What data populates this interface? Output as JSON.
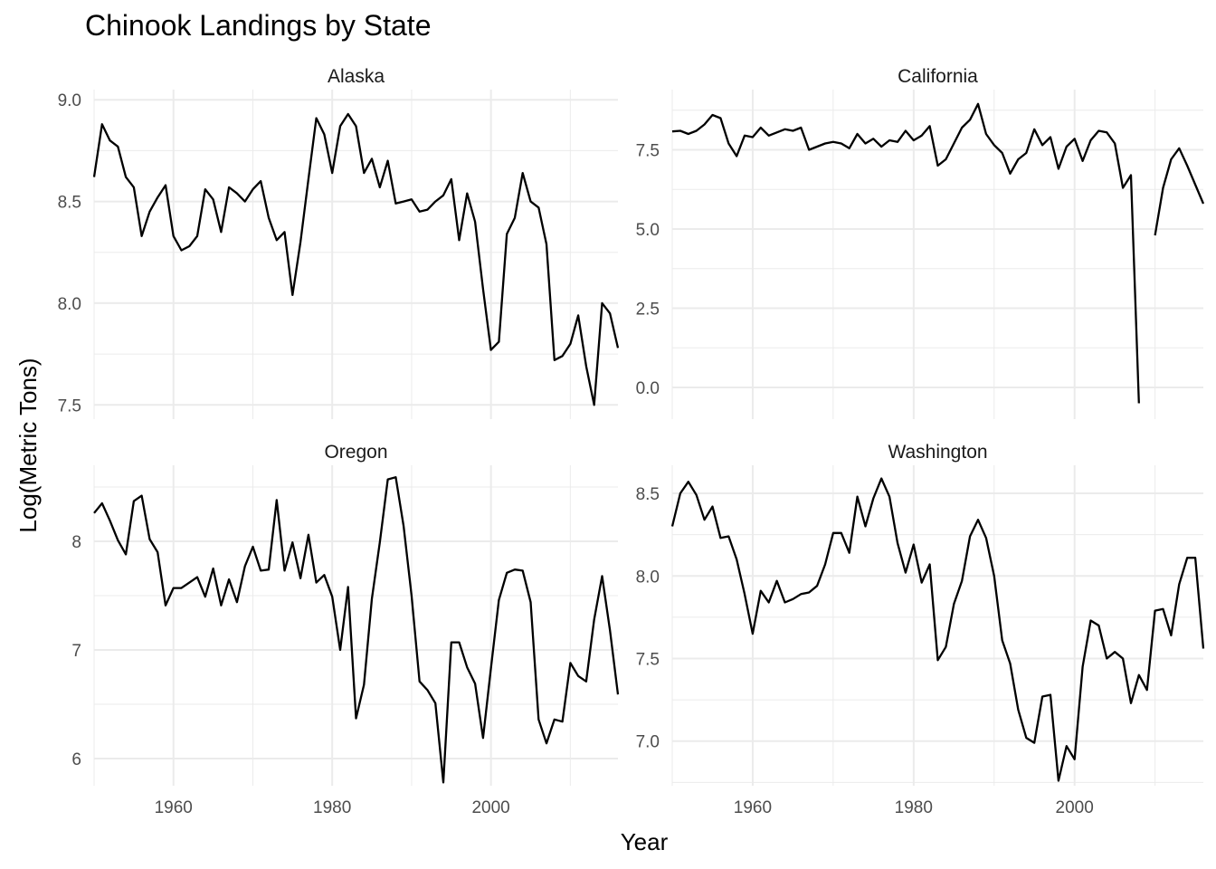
{
  "chart_data": {
    "type": "line",
    "title": "Chinook Landings by State",
    "xlabel": "Year",
    "ylabel": "Log(Metric Tons)",
    "grid": true,
    "x_start": 1950,
    "panels": [
      {
        "name": "Alaska",
        "xlim": [
          1950,
          2016
        ],
        "ylim": [
          7.43,
          9.05
        ],
        "x_ticks": [
          1960,
          1980,
          2000
        ],
        "y_ticks": [
          7.5,
          8.0,
          8.5,
          9.0
        ],
        "y_tick_labels": [
          "7.5",
          "8.0",
          "8.5",
          "9.0"
        ],
        "show_x_labels": false,
        "values": [
          8.62,
          8.88,
          8.8,
          8.77,
          8.62,
          8.57,
          8.33,
          8.45,
          8.52,
          8.58,
          8.33,
          8.26,
          8.28,
          8.33,
          8.56,
          8.51,
          8.35,
          8.57,
          8.54,
          8.5,
          8.56,
          8.6,
          8.42,
          8.31,
          8.35,
          8.04,
          8.3,
          8.61,
          8.91,
          8.83,
          8.64,
          8.87,
          8.93,
          8.87,
          8.64,
          8.71,
          8.57,
          8.7,
          8.49,
          8.5,
          8.51,
          8.45,
          8.46,
          8.5,
          8.53,
          8.61,
          8.31,
          8.54,
          8.4,
          8.07,
          7.77,
          7.81,
          8.34,
          8.42,
          8.64,
          8.5,
          8.47,
          8.29,
          7.72,
          7.74,
          7.8,
          7.94,
          7.69,
          7.5,
          8.0,
          7.95,
          7.78
        ]
      },
      {
        "name": "California",
        "xlim": [
          1950,
          2016
        ],
        "ylim": [
          -1.0,
          9.4
        ],
        "x_ticks": [
          1960,
          1980,
          2000
        ],
        "y_ticks": [
          0.0,
          2.5,
          5.0,
          7.5
        ],
        "y_tick_labels": [
          "0.0",
          "2.5",
          "5.0",
          "7.5"
        ],
        "show_x_labels": false,
        "values": [
          8.08,
          8.1,
          8.0,
          8.1,
          8.3,
          8.6,
          8.5,
          7.7,
          7.3,
          7.95,
          7.9,
          8.2,
          7.95,
          8.05,
          8.15,
          8.1,
          8.2,
          7.5,
          7.6,
          7.7,
          7.75,
          7.7,
          7.55,
          8.0,
          7.7,
          7.85,
          7.6,
          7.8,
          7.75,
          8.1,
          7.8,
          7.95,
          8.25,
          7.0,
          7.2,
          7.7,
          8.2,
          8.45,
          8.95,
          8.0,
          7.65,
          7.4,
          6.75,
          7.2,
          7.4,
          8.15,
          7.65,
          7.9,
          6.9,
          7.6,
          7.85,
          7.15,
          7.8,
          8.1,
          8.05,
          7.7,
          6.3,
          6.7,
          -0.5,
          null,
          4.8,
          6.3,
          7.2,
          7.55,
          7.0,
          6.4,
          5.8
        ]
      },
      {
        "name": "Oregon",
        "xlim": [
          1950,
          2016
        ],
        "ylim": [
          5.75,
          8.7
        ],
        "x_ticks": [
          1960,
          1980,
          2000
        ],
        "y_ticks": [
          6,
          7,
          8
        ],
        "y_tick_labels": [
          "6",
          "7",
          "8"
        ],
        "show_x_labels": true,
        "values": [
          8.26,
          8.35,
          8.19,
          8.01,
          7.88,
          8.37,
          8.42,
          8.02,
          7.9,
          7.41,
          7.57,
          7.57,
          7.62,
          7.67,
          7.49,
          7.75,
          7.41,
          7.65,
          7.44,
          7.77,
          7.95,
          7.73,
          7.74,
          8.38,
          7.73,
          7.99,
          7.66,
          8.06,
          7.62,
          7.69,
          7.49,
          7.0,
          7.58,
          6.37,
          6.68,
          7.47,
          7.99,
          8.57,
          8.59,
          8.14,
          7.5,
          6.71,
          6.63,
          6.51,
          5.78,
          7.07,
          7.07,
          6.84,
          6.69,
          6.19,
          6.83,
          7.46,
          7.71,
          7.74,
          7.73,
          7.44,
          6.36,
          6.14,
          6.36,
          6.34,
          6.88,
          6.76,
          6.71,
          7.28,
          7.68,
          7.18,
          6.59
        ]
      },
      {
        "name": "Washington",
        "xlim": [
          1950,
          2016
        ],
        "ylim": [
          6.73,
          8.67
        ],
        "x_ticks": [
          1960,
          1980,
          2000
        ],
        "y_ticks": [
          7.0,
          7.5,
          8.0,
          8.5
        ],
        "y_tick_labels": [
          "7.0",
          "7.5",
          "8.0",
          "8.5"
        ],
        "show_x_labels": true,
        "values": [
          8.3,
          8.5,
          8.57,
          8.49,
          8.34,
          8.42,
          8.23,
          8.24,
          8.1,
          7.89,
          7.65,
          7.91,
          7.84,
          7.97,
          7.84,
          7.86,
          7.89,
          7.9,
          7.94,
          8.07,
          8.26,
          8.26,
          8.14,
          8.48,
          8.3,
          8.47,
          8.59,
          8.48,
          8.2,
          8.02,
          8.19,
          7.96,
          8.07,
          7.49,
          7.57,
          7.83,
          7.97,
          8.24,
          8.34,
          8.23,
          8.0,
          7.61,
          7.47,
          7.19,
          7.02,
          6.99,
          7.27,
          7.28,
          6.76,
          6.97,
          6.89,
          7.45,
          7.73,
          7.7,
          7.5,
          7.54,
          7.5,
          7.23,
          7.4,
          7.31,
          7.79,
          7.8,
          7.64,
          7.95,
          8.11,
          8.11,
          7.56
        ]
      }
    ]
  }
}
